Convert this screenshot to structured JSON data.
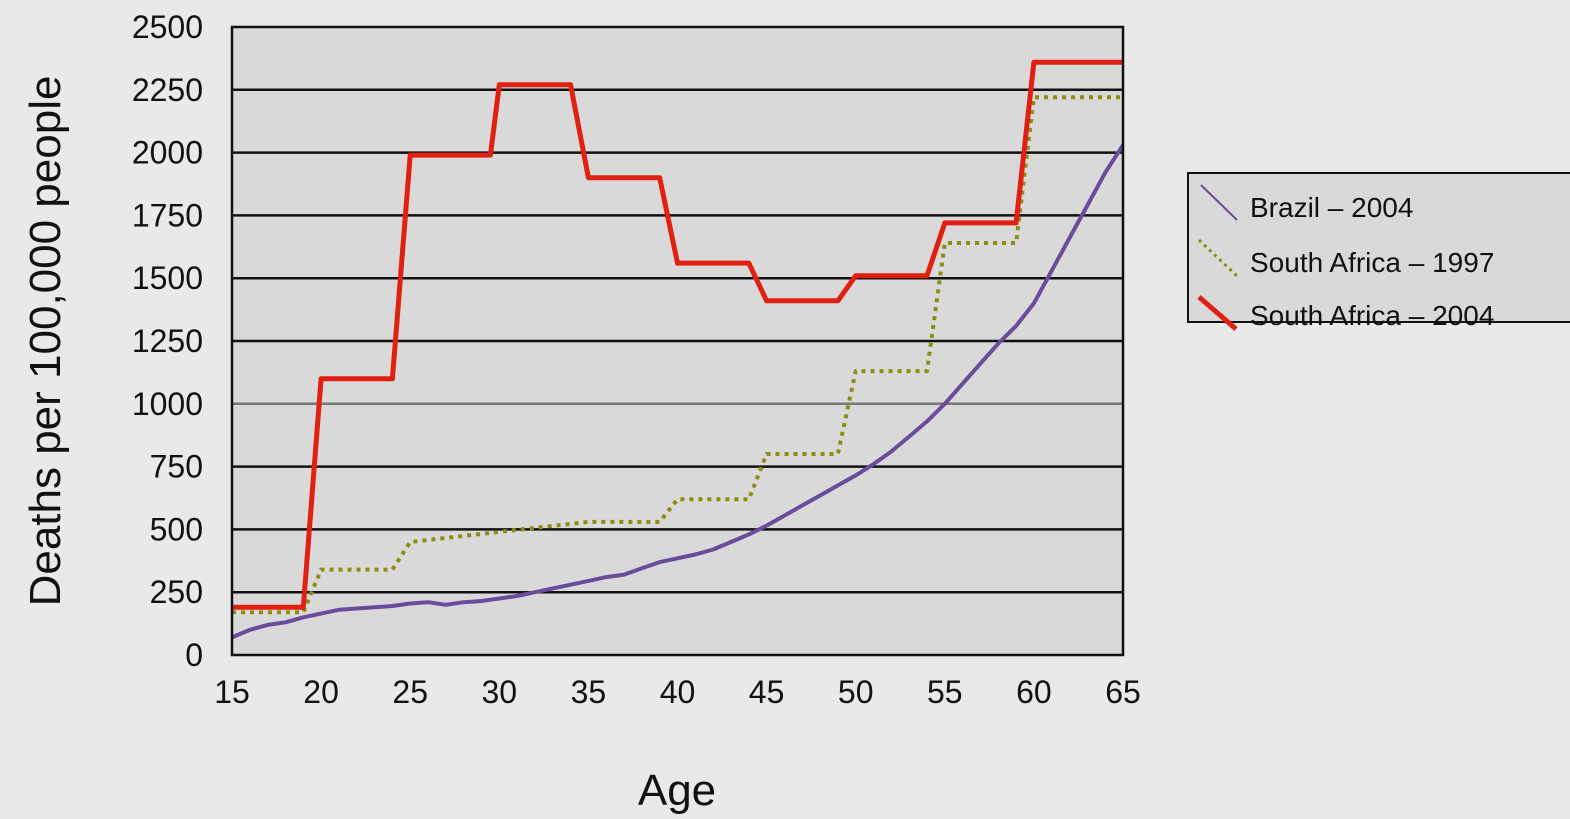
{
  "chart_data": {
    "type": "line",
    "title": "",
    "xlabel": "Age",
    "ylabel": "Deaths per 100,000 people",
    "xlim": [
      15,
      65
    ],
    "ylim": [
      0,
      2500
    ],
    "x_ticks": [
      "15",
      "20",
      "25",
      "30",
      "35",
      "40",
      "45",
      "50",
      "55",
      "60",
      "65"
    ],
    "y_ticks": [
      "0",
      "250",
      "500",
      "750",
      "1000",
      "1250",
      "1500",
      "1750",
      "2000",
      "2250",
      "2500"
    ],
    "grid": true,
    "legend_position": "right",
    "series": [
      {
        "name": "Brazil – 2004",
        "color": "#6a4c9c",
        "style": "solid",
        "x": [
          15,
          16,
          17,
          18,
          19,
          20,
          21,
          22,
          23,
          24,
          25,
          26,
          27,
          28,
          29,
          30,
          31,
          32,
          33,
          34,
          35,
          36,
          37,
          38,
          39,
          40,
          41,
          42,
          43,
          44,
          45,
          46,
          47,
          48,
          49,
          50,
          51,
          52,
          53,
          54,
          55,
          56,
          57,
          58,
          59,
          60,
          61,
          62,
          63,
          64,
          65
        ],
        "y": [
          70,
          100,
          120,
          130,
          150,
          165,
          180,
          185,
          190,
          195,
          205,
          210,
          200,
          210,
          215,
          225,
          235,
          250,
          265,
          280,
          295,
          310,
          320,
          345,
          370,
          385,
          400,
          420,
          450,
          480,
          515,
          555,
          595,
          635,
          675,
          715,
          760,
          810,
          870,
          930,
          1000,
          1080,
          1160,
          1240,
          1310,
          1400,
          1530,
          1660,
          1790,
          1920,
          2030
        ]
      },
      {
        "name": "South Africa – 1997",
        "color": "#8c8c10",
        "style": "dotted",
        "x": [
          15,
          19,
          20,
          24,
          25,
          30,
          35,
          39,
          40,
          44,
          45,
          49,
          50,
          54,
          55,
          59,
          60,
          65
        ],
        "y": [
          170,
          170,
          340,
          340,
          450,
          490,
          530,
          530,
          620,
          620,
          800,
          800,
          1130,
          1130,
          1640,
          1640,
          2220,
          2220
        ]
      },
      {
        "name": "South Africa – 2004",
        "color": "#e02010",
        "style": "solid",
        "x": [
          15,
          19,
          20,
          24,
          25,
          29.5,
          30,
          34,
          35,
          39,
          40,
          44,
          45,
          49,
          50,
          54,
          55,
          59,
          60,
          65
        ],
        "y": [
          190,
          190,
          1100,
          1100,
          1990,
          1990,
          2270,
          2270,
          1900,
          1900,
          1560,
          1560,
          1410,
          1410,
          1510,
          1510,
          1720,
          1720,
          2360,
          2360
        ]
      }
    ]
  }
}
